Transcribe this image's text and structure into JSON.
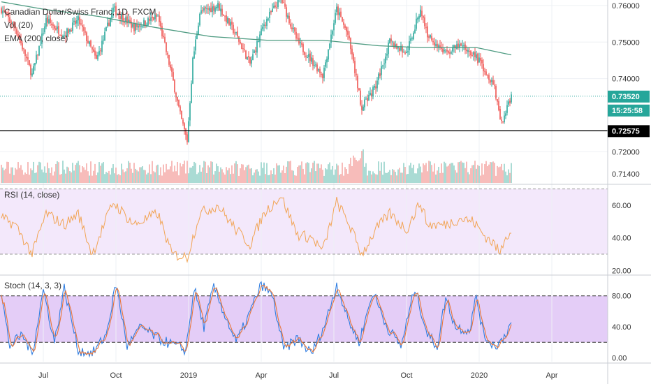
{
  "chart_data": [
    {
      "type": "candlestick",
      "title": "Canadian Dollar/Swiss Franc, 1D, FXCM",
      "indicators": [
        "Vol (20)",
        "EMA (200, close)"
      ],
      "y_ticks": [
        "0.76000",
        "0.75000",
        "0.74000",
        "0.72000",
        "0.71400"
      ],
      "ylim": [
        0.7115,
        0.7615
      ],
      "last_price": "0.73520",
      "countdown": "15:25:58",
      "support_level": "0.72575",
      "x_ticks": [
        "Jul",
        "Oct",
        "2019",
        "Apr",
        "Jul",
        "Oct",
        "2020",
        "Apr"
      ],
      "x_tick_idx": [
        30,
        82,
        134,
        186,
        238,
        290,
        342,
        394
      ],
      "ema_200": [
        [
          0,
          0.761
        ],
        [
          30,
          0.759
        ],
        [
          70,
          0.757
        ],
        [
          110,
          0.754
        ],
        [
          150,
          0.7515
        ],
        [
          190,
          0.7505
        ],
        [
          230,
          0.7505
        ],
        [
          270,
          0.749
        ],
        [
          300,
          0.7485
        ],
        [
          340,
          0.7485
        ],
        [
          365,
          0.7465
        ]
      ],
      "ohlc_anchors": [
        [
          0,
          0.759
        ],
        [
          10,
          0.754
        ],
        [
          22,
          0.741
        ],
        [
          32,
          0.756
        ],
        [
          45,
          0.752
        ],
        [
          55,
          0.756
        ],
        [
          68,
          0.745
        ],
        [
          80,
          0.759
        ],
        [
          95,
          0.754
        ],
        [
          112,
          0.757
        ],
        [
          122,
          0.741
        ],
        [
          128,
          0.73
        ],
        [
          133,
          0.723
        ],
        [
          137,
          0.745
        ],
        [
          142,
          0.758
        ],
        [
          155,
          0.76
        ],
        [
          168,
          0.752
        ],
        [
          178,
          0.744
        ],
        [
          188,
          0.755
        ],
        [
          200,
          0.762
        ],
        [
          212,
          0.75
        ],
        [
          222,
          0.745
        ],
        [
          230,
          0.741
        ],
        [
          240,
          0.759
        ],
        [
          248,
          0.752
        ],
        [
          258,
          0.732
        ],
        [
          268,
          0.738
        ],
        [
          278,
          0.75
        ],
        [
          290,
          0.747
        ],
        [
          300,
          0.759
        ],
        [
          305,
          0.752
        ],
        [
          318,
          0.747
        ],
        [
          328,
          0.749
        ],
        [
          338,
          0.747
        ],
        [
          345,
          0.743
        ],
        [
          353,
          0.738
        ],
        [
          357,
          0.728
        ],
        [
          360,
          0.73
        ],
        [
          365,
          0.735
        ]
      ]
    },
    {
      "type": "line",
      "title": "RSI (14, close)",
      "y_ticks": [
        "60.00",
        "40.00",
        "20.00"
      ],
      "ylim": [
        18,
        72
      ],
      "bands": [
        30,
        70
      ],
      "anchors": [
        [
          0,
          52
        ],
        [
          10,
          48
        ],
        [
          22,
          30
        ],
        [
          32,
          55
        ],
        [
          45,
          48
        ],
        [
          55,
          55
        ],
        [
          65,
          30
        ],
        [
          80,
          62
        ],
        [
          95,
          48
        ],
        [
          112,
          55
        ],
        [
          122,
          30
        ],
        [
          133,
          28
        ],
        [
          142,
          55
        ],
        [
          155,
          60
        ],
        [
          168,
          45
        ],
        [
          178,
          36
        ],
        [
          188,
          55
        ],
        [
          200,
          66
        ],
        [
          212,
          42
        ],
        [
          222,
          40
        ],
        [
          230,
          32
        ],
        [
          240,
          62
        ],
        [
          248,
          50
        ],
        [
          258,
          30
        ],
        [
          268,
          45
        ],
        [
          278,
          55
        ],
        [
          290,
          45
        ],
        [
          300,
          62
        ],
        [
          305,
          48
        ],
        [
          318,
          48
        ],
        [
          328,
          52
        ],
        [
          338,
          50
        ],
        [
          345,
          42
        ],
        [
          353,
          36
        ],
        [
          357,
          30
        ],
        [
          360,
          40
        ],
        [
          365,
          45
        ]
      ]
    },
    {
      "type": "line",
      "title": "Stoch (14, 3, 3)",
      "y_ticks": [
        "80.00",
        "40.00",
        "0.00"
      ],
      "ylim": [
        -5,
        105
      ],
      "bands": [
        20,
        80
      ],
      "anchors": [
        [
          0,
          80
        ],
        [
          6,
          15
        ],
        [
          15,
          30
        ],
        [
          22,
          5
        ],
        [
          30,
          88
        ],
        [
          38,
          20
        ],
        [
          45,
          90
        ],
        [
          55,
          10
        ],
        [
          65,
          5
        ],
        [
          75,
          30
        ],
        [
          82,
          95
        ],
        [
          90,
          15
        ],
        [
          100,
          40
        ],
        [
          112,
          25
        ],
        [
          125,
          15
        ],
        [
          132,
          10
        ],
        [
          138,
          90
        ],
        [
          145,
          40
        ],
        [
          152,
          92
        ],
        [
          160,
          55
        ],
        [
          168,
          20
        ],
        [
          176,
          50
        ],
        [
          186,
          95
        ],
        [
          194,
          80
        ],
        [
          202,
          10
        ],
        [
          212,
          25
        ],
        [
          222,
          5
        ],
        [
          232,
          45
        ],
        [
          240,
          95
        ],
        [
          248,
          50
        ],
        [
          256,
          20
        ],
        [
          266,
          85
        ],
        [
          276,
          40
        ],
        [
          286,
          15
        ],
        [
          296,
          90
        ],
        [
          305,
          30
        ],
        [
          312,
          15
        ],
        [
          318,
          78
        ],
        [
          325,
          40
        ],
        [
          335,
          35
        ],
        [
          340,
          80
        ],
        [
          345,
          30
        ],
        [
          353,
          15
        ],
        [
          358,
          22
        ],
        [
          365,
          45
        ]
      ]
    }
  ]
}
